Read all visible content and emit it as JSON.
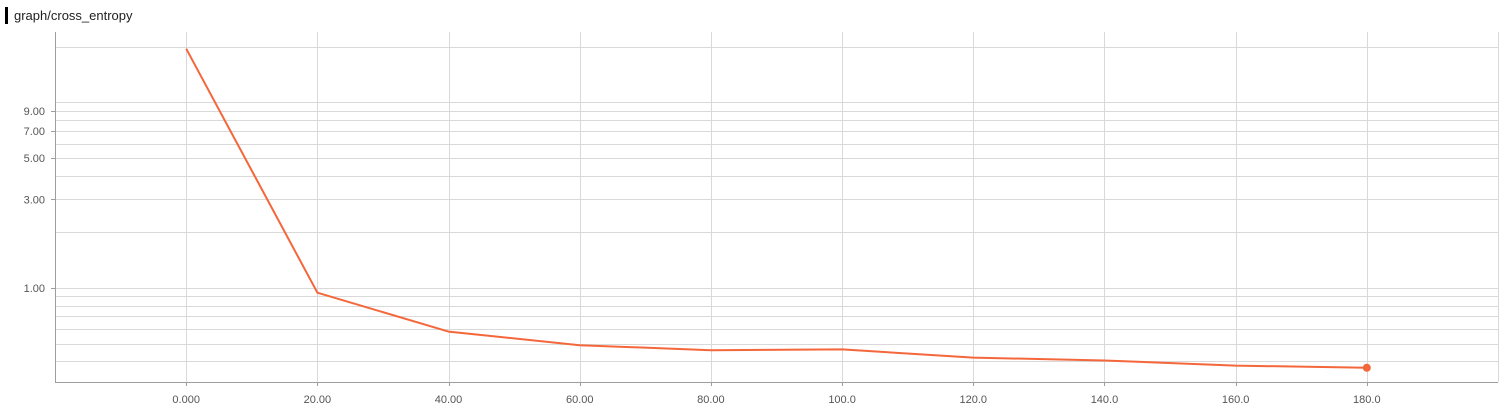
{
  "title": "graph/cross_entropy",
  "colors": {
    "series": "#f4673b",
    "grid": "#d9d9d9",
    "axis": "#9e9e9e",
    "title_marker": "#000000"
  },
  "chart_data": {
    "type": "line",
    "title": "graph/cross_entropy",
    "xlabel": "",
    "ylabel": "",
    "yscale": "log",
    "xlim": [
      -20,
      200
    ],
    "ylim": [
      0.31,
      24
    ],
    "x_ticks": [
      0,
      20,
      40,
      60,
      80,
      100,
      120,
      140,
      160,
      180
    ],
    "x_tick_labels": [
      "0.000",
      "20.00",
      "40.00",
      "60.00",
      "80.00",
      "100.0",
      "120.0",
      "140.0",
      "160.0",
      "180.0"
    ],
    "y_ticks": [
      1,
      3,
      5,
      7,
      9
    ],
    "y_tick_labels": [
      "1.00",
      "3.00",
      "5.00",
      "7.00",
      "9.00"
    ],
    "grid": true,
    "series": [
      {
        "x": [
          0,
          20,
          40,
          60,
          80,
          100,
          120,
          140,
          160,
          180
        ],
        "y": [
          19.5,
          0.94,
          0.58,
          0.49,
          0.46,
          0.465,
          0.42,
          0.405,
          0.38,
          0.37
        ],
        "color": "#f4673b"
      }
    ]
  }
}
